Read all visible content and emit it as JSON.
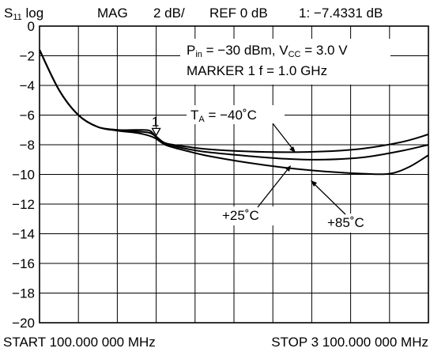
{
  "chart_data": {
    "type": "line",
    "header": {
      "param_main": "S",
      "param_sub": "11",
      "param_rest": " log",
      "mag": "MAG",
      "scale": "2 dB/",
      "ref": "REF 0 dB",
      "marker_readout": "1: −7.4331 dB"
    },
    "footer": {
      "start": "START  100.000 000 MHz",
      "stop": "STOP  3 100.000 000 MHz"
    },
    "conditions": {
      "line1_a": "P",
      "line1_sub": "in",
      "line1_b": " = −30 dBm, V",
      "line1_sub2": "CC",
      "line1_c": " = 3.0 V",
      "line2": "MARKER 1  f = 1.0 GHz"
    },
    "xlim": [
      100,
      3100
    ],
    "ylim": [
      -20,
      0
    ],
    "x_divisions": 10,
    "y_ticks": [
      {
        "value": 0,
        "label": "0"
      },
      {
        "value": -2,
        "label": "−2"
      },
      {
        "value": -4,
        "label": "−4"
      },
      {
        "value": -6,
        "label": "−6"
      },
      {
        "value": -8,
        "label": "−8"
      },
      {
        "value": -10,
        "label": "−10"
      },
      {
        "value": -12,
        "label": "−12"
      },
      {
        "value": -14,
        "label": "−14"
      },
      {
        "value": -16,
        "label": "−16"
      },
      {
        "value": -18,
        "label": "−18"
      },
      {
        "value": -20,
        "label": "−20"
      }
    ],
    "grid": true,
    "marker": {
      "label": "1",
      "x": 1000,
      "y": -7.4331
    },
    "series": [
      {
        "label_a": "T",
        "label_sub": "A",
        "label_b": " = −40˚C",
        "x": [
          100,
          250,
          400,
          550,
          700,
          850,
          950,
          1000,
          1050,
          1100,
          1250,
          1400,
          1700,
          2000,
          2300,
          2600,
          2900,
          3100
        ],
        "y": [
          -1.6,
          -4.3,
          -6.0,
          -6.8,
          -7.0,
          -7.0,
          -7.05,
          -7.5,
          -7.8,
          -7.95,
          -8.15,
          -8.3,
          -8.45,
          -8.5,
          -8.45,
          -8.25,
          -7.8,
          -7.3
        ]
      },
      {
        "label": "+25˚C",
        "x": [
          100,
          250,
          400,
          550,
          700,
          850,
          950,
          1000,
          1050,
          1100,
          1250,
          1400,
          1700,
          2000,
          2300,
          2600,
          2900,
          3100
        ],
        "y": [
          -1.6,
          -4.3,
          -6.0,
          -6.8,
          -7.0,
          -7.1,
          -7.2,
          -7.45,
          -7.8,
          -8.0,
          -8.3,
          -8.5,
          -8.75,
          -8.95,
          -9.0,
          -8.85,
          -8.4,
          -8.0
        ]
      },
      {
        "label": "+85˚C",
        "x": [
          100,
          250,
          400,
          550,
          700,
          850,
          950,
          1000,
          1050,
          1100,
          1250,
          1400,
          1700,
          2000,
          2300,
          2600,
          2800,
          2950,
          3100
        ],
        "y": [
          -1.6,
          -4.3,
          -6.0,
          -6.8,
          -7.05,
          -7.2,
          -7.4,
          -7.6,
          -7.9,
          -8.1,
          -8.45,
          -8.75,
          -9.2,
          -9.55,
          -9.8,
          -9.95,
          -9.95,
          -9.5,
          -8.7
        ]
      }
    ]
  }
}
